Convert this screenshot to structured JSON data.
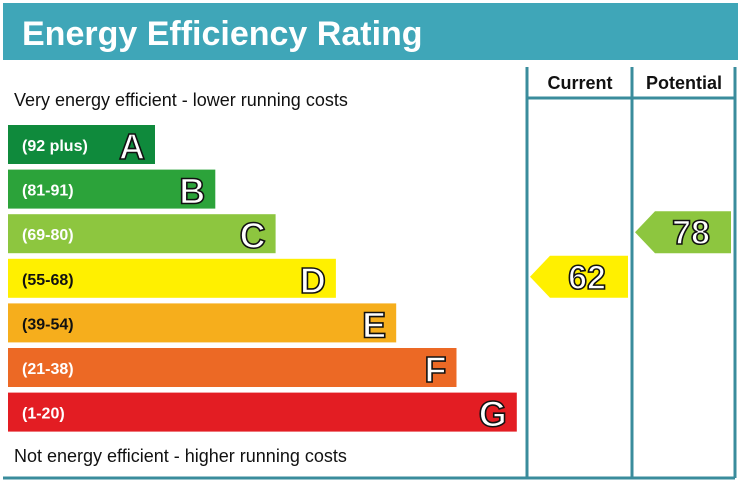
{
  "chart_data": {
    "type": "bar",
    "title": "Energy Efficiency Rating",
    "top_note": "Very energy efficient - lower running costs",
    "bottom_note": "Not energy efficient - higher running costs",
    "columns": [
      "Current",
      "Potential"
    ],
    "bands": [
      {
        "letter": "A",
        "range": "(92 plus)",
        "color": "#0f8a3c"
      },
      {
        "letter": "B",
        "range": "(81-91)",
        "color": "#2ca33a"
      },
      {
        "letter": "C",
        "range": "(69-80)",
        "color": "#8dc63f"
      },
      {
        "letter": "D",
        "range": "(55-68)",
        "color": "#fff000"
      },
      {
        "letter": "E",
        "range": "(39-54)",
        "color": "#f6ae1c"
      },
      {
        "letter": "F",
        "range": "(21-38)",
        "color": "#ec6925"
      },
      {
        "letter": "G",
        "range": "(1-20)",
        "color": "#e31d23"
      }
    ],
    "current": {
      "value": "62",
      "band": "D",
      "color": "#fff000"
    },
    "potential": {
      "value": "78",
      "band": "C",
      "color": "#8dc63f"
    }
  },
  "colors": {
    "frame": "#3a8c9c",
    "header": "#3fa6b8"
  }
}
